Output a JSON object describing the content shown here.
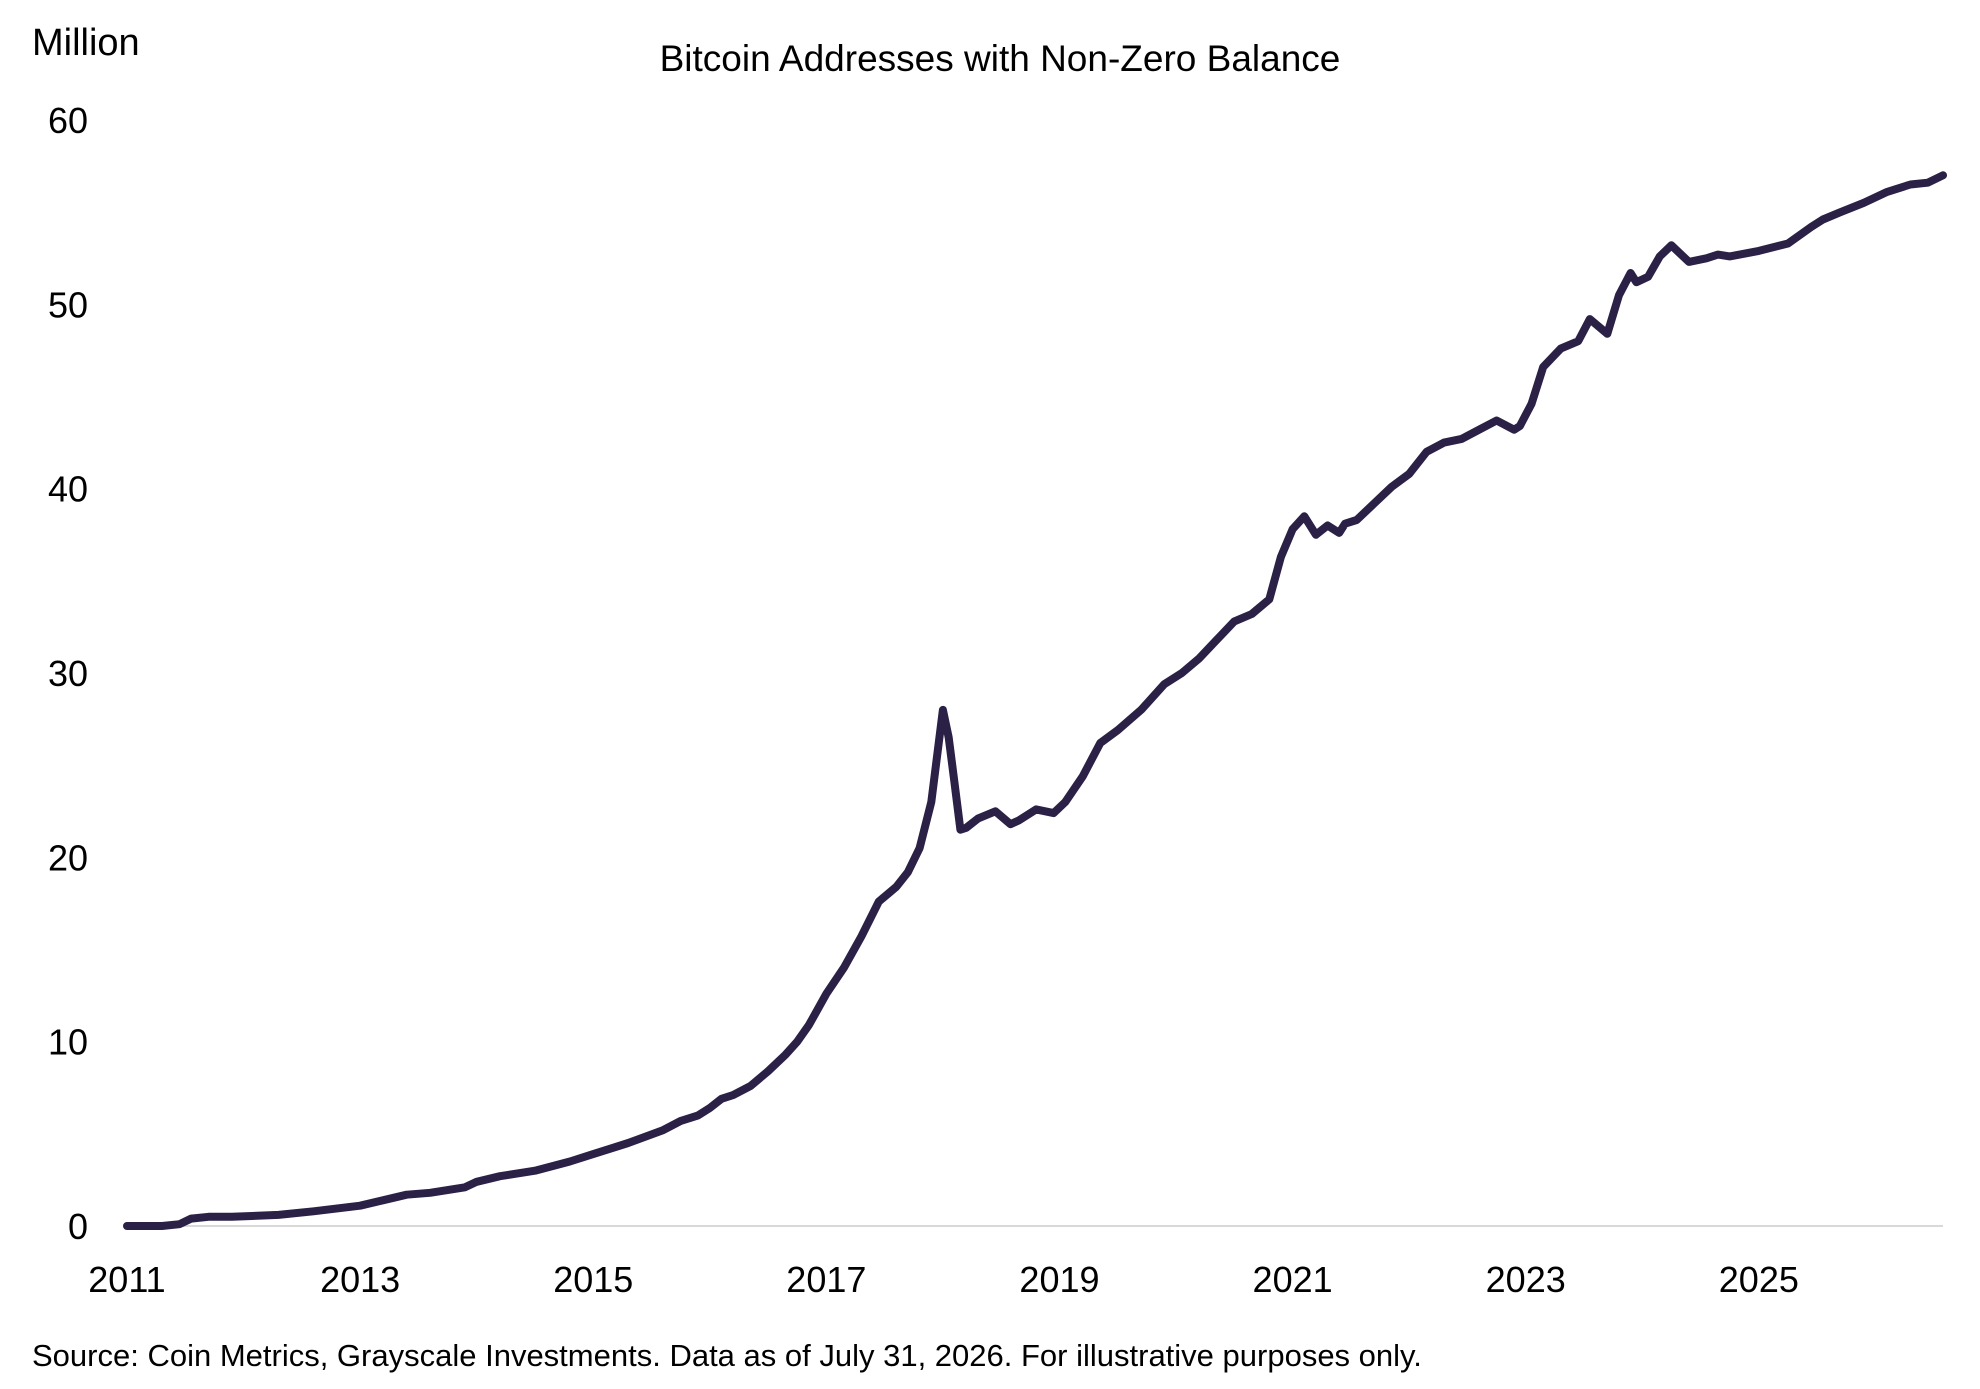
{
  "chart_data": {
    "type": "line",
    "title": "Bitcoin Addresses with Non-Zero Balance",
    "ylabel": "Million",
    "xlabel": "",
    "ylim": [
      0,
      60
    ],
    "xlim": [
      2011.0,
      2026.58
    ],
    "yticks": [
      0,
      10,
      20,
      30,
      40,
      50,
      60
    ],
    "xticks": [
      "2011",
      "2013",
      "2015",
      "2017",
      "2019",
      "2021",
      "2023",
      "2025"
    ],
    "grid": false,
    "legend": "none",
    "line_color": "#2b2146",
    "series": [
      {
        "x": [
          2011.0,
          2011.3,
          2011.45,
          2011.55,
          2011.7,
          2011.9,
          2012.3,
          2012.6,
          2013.0,
          2013.2,
          2013.4,
          2013.6,
          2013.9,
          2014.0,
          2014.2,
          2014.5,
          2014.8,
          2015.0,
          2015.3,
          2015.6,
          2015.75,
          2015.9,
          2016.0,
          2016.1,
          2016.2,
          2016.35,
          2016.5,
          2016.65,
          2016.75,
          2016.85,
          2017.0,
          2017.15,
          2017.3,
          2017.45,
          2017.6,
          2017.7,
          2017.8,
          2017.9,
          2018.0,
          2018.05,
          2018.1,
          2018.15,
          2018.2,
          2018.3,
          2018.45,
          2018.58,
          2018.65,
          2018.8,
          2018.95,
          2019.05,
          2019.2,
          2019.35,
          2019.5,
          2019.7,
          2019.9,
          2020.05,
          2020.2,
          2020.35,
          2020.5,
          2020.65,
          2020.8,
          2020.9,
          2021.0,
          2021.1,
          2021.2,
          2021.3,
          2021.4,
          2021.45,
          2021.55,
          2021.7,
          2021.85,
          2022.0,
          2022.15,
          2022.3,
          2022.45,
          2022.6,
          2022.75,
          2022.9,
          2022.95,
          2023.05,
          2023.15,
          2023.3,
          2023.45,
          2023.55,
          2023.7,
          2023.8,
          2023.9,
          2023.95,
          2024.05,
          2024.15,
          2024.25,
          2024.4,
          2024.55,
          2024.65,
          2024.75,
          2025.0,
          2025.25,
          2025.45,
          2025.55,
          2025.7,
          2025.9,
          2026.1,
          2026.3,
          2026.45,
          2026.58
        ],
        "y": [
          0.0,
          0.0,
          0.1,
          0.4,
          0.5,
          0.5,
          0.6,
          0.8,
          1.1,
          1.4,
          1.7,
          1.8,
          2.1,
          2.4,
          2.7,
          3.0,
          3.5,
          3.9,
          4.5,
          5.2,
          5.7,
          6.0,
          6.4,
          6.9,
          7.1,
          7.6,
          8.4,
          9.3,
          10.0,
          10.9,
          12.6,
          14.0,
          15.7,
          17.6,
          18.4,
          19.2,
          20.5,
          23.0,
          28.0,
          26.5,
          24.0,
          21.5,
          21.6,
          22.1,
          22.5,
          21.8,
          22.0,
          22.6,
          22.4,
          23.0,
          24.4,
          26.2,
          26.9,
          28.0,
          29.4,
          30.0,
          30.8,
          31.8,
          32.8,
          33.2,
          34.0,
          36.3,
          37.8,
          38.5,
          37.5,
          38.0,
          37.6,
          38.1,
          38.3,
          39.2,
          40.1,
          40.8,
          42.0,
          42.5,
          42.7,
          43.2,
          43.7,
          43.2,
          43.4,
          44.6,
          46.6,
          47.6,
          48.0,
          49.2,
          48.4,
          50.5,
          51.7,
          51.2,
          51.5,
          52.6,
          53.2,
          52.3,
          52.5,
          52.7,
          52.6,
          52.9,
          53.3,
          54.2,
          54.6,
          55.0,
          55.5,
          56.1,
          56.5,
          56.6,
          57.0
        ]
      }
    ]
  },
  "source_note": "Source: Coin Metrics, Grayscale Investments. Data as of July 31, 2026. For illustrative purposes only."
}
